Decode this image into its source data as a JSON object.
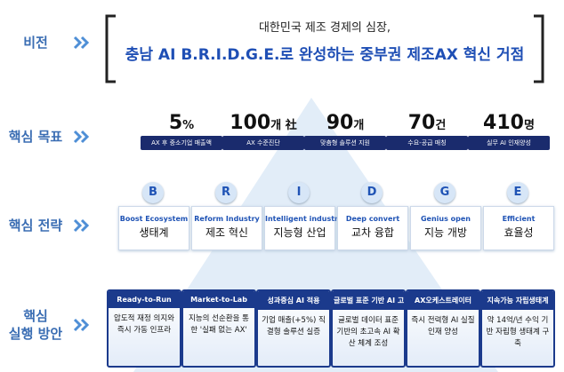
{
  "rows": [
    "비전",
    "핵심 목표",
    "핵심 전략",
    "핵심\n실행 방안"
  ],
  "vision": {
    "line1": "대한민국 제조 경제의 심장,",
    "line2": "충남 AI B.R.I.D.G.E.로 완성하는 중부권 제조AX 혁신 거점"
  },
  "goals": [
    {
      "number": "5",
      "unit": "%",
      "label": "AX 후 중소기업 매출액"
    },
    {
      "number": "100",
      "unit": "개 社",
      "label": "AX 수준진단"
    },
    {
      "number": "90",
      "unit": "개",
      "label": "맞춤형 솔루션 지원"
    },
    {
      "number": "70",
      "unit": "건",
      "label": "수요-공급 매칭"
    },
    {
      "number": "410",
      "unit": "명",
      "label": "실무 AI 인재양성"
    }
  ],
  "strategies": [
    {
      "letter": "B",
      "english": "Boost Ecosystem",
      "korean": "생태계"
    },
    {
      "letter": "R",
      "english": "Reform Industry",
      "korean": "제조 혁신"
    },
    {
      "letter": "I",
      "english": "Intelligent industry",
      "korean": "지능형 산업"
    },
    {
      "letter": "D",
      "english": "Deep convert",
      "korean": "교차 융합"
    },
    {
      "letter": "G",
      "english": "Genius open",
      "korean": "지능 개방"
    },
    {
      "letter": "E",
      "english": "Efficient",
      "korean": "효율성"
    }
  ],
  "actions": [
    {
      "title": "Ready-to-Run",
      "text": "압도적 재정 의지와 즉시 가동 인프라"
    },
    {
      "title": "Market-to-Lab",
      "text": "지능의 선순환을 통한 '실패 없는 AX'"
    },
    {
      "title": "성과중심 AI 적용",
      "text": "기업 매출(+5%) 직결형 솔루션 실증"
    },
    {
      "title": "글로벌 표준 기반 AI 고속도로",
      "text": "글로벌 데이터 표준 기반의 초고속 AI 확산 체계 조성"
    },
    {
      "title": "AX오케스트레이터",
      "text": "즉시 전력형 AI 실질 인재 양성"
    },
    {
      "title": "지속가능 자립생태계",
      "text": "약 14억/년 수익 기반 자립형 생태계 구축"
    }
  ]
}
